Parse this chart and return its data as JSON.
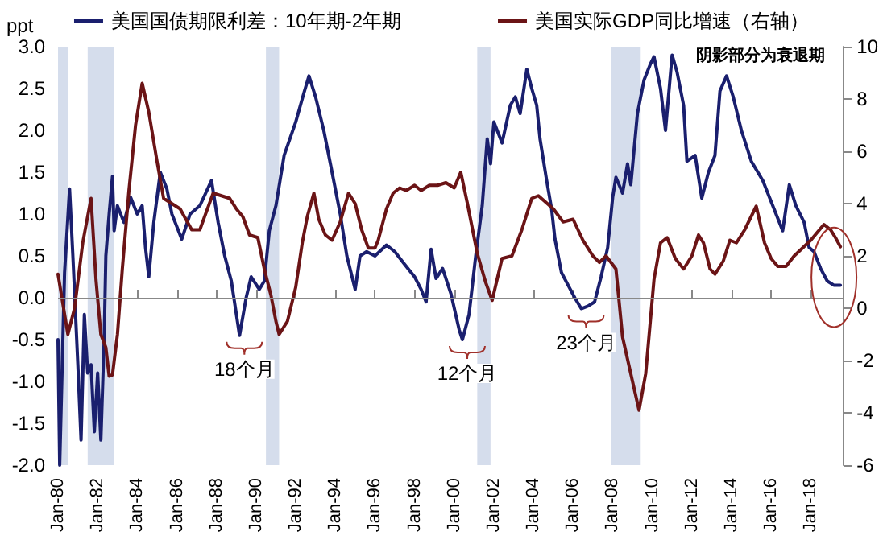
{
  "chart_data": {
    "type": "line",
    "ylabel": "ppt",
    "legend": "top",
    "grid": false,
    "marker": "none",
    "line_style": "solid",
    "xlim": [
      "1980-01",
      "2019-09"
    ],
    "xticks": [
      {
        "value": "1980-01",
        "label": "Jan-80"
      },
      {
        "value": "1982-01",
        "label": "Jan-82"
      },
      {
        "value": "1984-01",
        "label": "Jan-84"
      },
      {
        "value": "1986-01",
        "label": "Jan-86"
      },
      {
        "value": "1988-01",
        "label": "Jan-88"
      },
      {
        "value": "1990-01",
        "label": "Jan-90"
      },
      {
        "value": "1992-01",
        "label": "Jan-92"
      },
      {
        "value": "1994-01",
        "label": "Jan-94"
      },
      {
        "value": "1996-01",
        "label": "Jan-96"
      },
      {
        "value": "1998-01",
        "label": "Jan-98"
      },
      {
        "value": "2000-01",
        "label": "Jan-00"
      },
      {
        "value": "2002-01",
        "label": "Jan-02"
      },
      {
        "value": "2004-01",
        "label": "Jan-04"
      },
      {
        "value": "2006-01",
        "label": "Jan-06"
      },
      {
        "value": "2008-01",
        "label": "Jan-08"
      },
      {
        "value": "2010-01",
        "label": "Jan-10"
      },
      {
        "value": "2012-01",
        "label": "Jan-12"
      },
      {
        "value": "2014-01",
        "label": "Jan-14"
      },
      {
        "value": "2016-01",
        "label": "Jan-16"
      },
      {
        "value": "2018-01",
        "label": "Jan-18"
      }
    ],
    "ylim": [
      -2,
      3
    ],
    "yticks": [
      {
        "value": -2,
        "label": "-2.0"
      },
      {
        "value": -1.5,
        "label": "-1.5"
      },
      {
        "value": -1,
        "label": "-1.0"
      },
      {
        "value": -0.5,
        "label": "-0.5"
      },
      {
        "value": 0,
        "label": "0.0"
      },
      {
        "value": 0.5,
        "label": "0.5"
      },
      {
        "value": 1,
        "label": "1.0"
      },
      {
        "value": 1.5,
        "label": "1.5"
      },
      {
        "value": 2,
        "label": "2.0"
      },
      {
        "value": 2.5,
        "label": "2.5"
      },
      {
        "value": 3,
        "label": "3.0"
      }
    ],
    "y2lim": [
      -6,
      10
    ],
    "y2ticks": [
      -6,
      -4,
      -2,
      0,
      2,
      4,
      6,
      8,
      10
    ],
    "bands": [
      {
        "axis": "x",
        "from": "1980-01",
        "to": "1980-07",
        "color": "#d5ddec"
      },
      {
        "axis": "x",
        "from": "1981-07",
        "to": "1982-11",
        "color": "#d5ddec"
      },
      {
        "axis": "x",
        "from": "1990-07",
        "to": "1991-03",
        "color": "#d5ddec"
      },
      {
        "axis": "x",
        "from": "2001-03",
        "to": "2001-11",
        "color": "#d5ddec"
      },
      {
        "axis": "x",
        "from": "2007-12",
        "to": "2009-06",
        "color": "#d5ddec"
      }
    ],
    "annotations": [
      "阴影部分为衰退期",
      {
        "text": "18个月",
        "x": "1989-03",
        "y": -0.45
      },
      {
        "text": "12个月",
        "x": "2000-06",
        "y": -0.5
      },
      {
        "text": "23个月",
        "x": "2006-06",
        "y": -0.13
      }
    ],
    "ref_lines": [
      {
        "axis": "y",
        "value": 0,
        "color": "#888888"
      }
    ],
    "series": [
      {
        "name": "美国国债期限利差：10年期-2年期",
        "color": "#1a1f6e",
        "x": [
          "1980-01",
          "1980-02",
          "1980-05",
          "1980-08",
          "1980-10",
          "1981-01",
          "1981-03",
          "1981-05",
          "1981-07",
          "1981-09",
          "1981-11",
          "1982-01",
          "1982-03",
          "1982-05",
          "1982-06",
          "1982-08",
          "1982-10",
          "1982-11",
          "1983-01",
          "1983-05",
          "1983-09",
          "1984-01",
          "1984-04",
          "1984-06",
          "1984-08",
          "1984-11",
          "1985-03",
          "1985-07",
          "1985-10",
          "1986-04",
          "1986-09",
          "1987-03",
          "1987-10",
          "1988-02",
          "1988-06",
          "1988-10",
          "1989-03",
          "1989-07",
          "1989-10",
          "1990-03",
          "1990-06",
          "1990-09",
          "1991-01",
          "1991-06",
          "1992-01",
          "1992-06",
          "1992-09",
          "1993-01",
          "1993-06",
          "1993-11",
          "1994-04",
          "1994-08",
          "1995-01",
          "1995-04",
          "1995-08",
          "1996-01",
          "1996-08",
          "1997-01",
          "1997-07",
          "1998-01",
          "1998-05",
          "1998-08",
          "1998-11",
          "1999-02",
          "1999-06",
          "1999-11",
          "2000-04",
          "2000-06",
          "2000-10",
          "2001-02",
          "2001-06",
          "2001-09",
          "2001-11",
          "2002-01",
          "2002-06",
          "2002-11",
          "2003-02",
          "2003-05",
          "2003-09",
          "2003-12",
          "2004-03",
          "2004-05",
          "2004-09",
          "2004-12",
          "2005-02",
          "2005-06",
          "2005-10",
          "2006-02",
          "2006-06",
          "2006-10",
          "2007-02",
          "2007-06",
          "2007-10",
          "2008-01",
          "2008-03",
          "2008-07",
          "2008-10",
          "2008-12",
          "2009-04",
          "2009-08",
          "2009-12",
          "2010-02",
          "2010-06",
          "2010-09",
          "2011-01",
          "2011-04",
          "2011-08",
          "2011-10",
          "2012-03",
          "2012-07",
          "2012-11",
          "2013-03",
          "2013-06",
          "2013-10",
          "2014-02",
          "2014-07",
          "2015-01",
          "2015-05",
          "2015-08",
          "2015-12",
          "2016-04",
          "2016-08",
          "2016-12",
          "2017-04",
          "2017-09",
          "2017-12",
          "2018-03",
          "2018-07",
          "2018-11",
          "2019-03",
          "2019-07"
        ],
        "values": [
          -0.5,
          -2.0,
          0.3,
          1.3,
          0.5,
          -0.8,
          -1.7,
          -0.2,
          -0.9,
          -0.8,
          -1.6,
          -0.9,
          -1.7,
          -0.5,
          0.5,
          1.0,
          1.45,
          0.8,
          1.1,
          0.9,
          1.2,
          1.0,
          1.1,
          0.6,
          0.25,
          0.9,
          1.5,
          1.3,
          1.0,
          0.7,
          1.0,
          1.1,
          1.4,
          0.9,
          0.5,
          0.2,
          -0.45,
          0.0,
          0.25,
          0.1,
          0.2,
          0.8,
          1.1,
          1.7,
          2.1,
          2.45,
          2.65,
          2.4,
          2.0,
          1.5,
          1.0,
          0.5,
          0.1,
          0.5,
          0.55,
          0.5,
          0.63,
          0.55,
          0.4,
          0.25,
          0.1,
          -0.05,
          0.58,
          0.23,
          0.35,
          0.05,
          -0.38,
          -0.5,
          -0.2,
          0.5,
          1.1,
          1.9,
          1.6,
          2.1,
          1.85,
          2.3,
          2.4,
          2.2,
          2.73,
          2.5,
          2.3,
          1.9,
          1.4,
          1.06,
          0.7,
          0.3,
          0.15,
          0.0,
          -0.13,
          -0.1,
          -0.05,
          0.25,
          0.6,
          1.2,
          1.44,
          1.25,
          1.6,
          1.35,
          2.2,
          2.6,
          2.8,
          2.88,
          2.5,
          2.0,
          2.9,
          2.7,
          2.3,
          1.63,
          1.7,
          1.19,
          1.5,
          1.7,
          2.47,
          2.65,
          2.4,
          2.0,
          1.63,
          1.5,
          1.4,
          1.2,
          1.0,
          0.8,
          1.35,
          1.1,
          0.9,
          0.6,
          0.55,
          0.35,
          0.2,
          0.15,
          0.15
        ]
      },
      {
        "name": "美国实际GDP同比增速（右轴）",
        "color": "#6b1416",
        "axis": "y2",
        "x": [
          "1980-01",
          "1980-07",
          "1980-11",
          "1981-04",
          "1981-09",
          "1981-12",
          "1982-03",
          "1982-06",
          "1982-08",
          "1982-10",
          "1983-01",
          "1983-04",
          "1983-08",
          "1983-12",
          "1984-04",
          "1984-08",
          "1985-01",
          "1985-05",
          "1985-10",
          "1986-03",
          "1986-10",
          "1987-03",
          "1987-11",
          "1988-04",
          "1988-09",
          "1989-01",
          "1989-05",
          "1989-09",
          "1990-02",
          "1990-06",
          "1990-10",
          "1991-01",
          "1991-03",
          "1991-08",
          "1992-01",
          "1992-05",
          "1992-08",
          "1992-12",
          "1993-03",
          "1993-07",
          "1993-11",
          "1994-04",
          "1994-09",
          "1995-01",
          "1995-05",
          "1995-09",
          "1996-01",
          "1996-03",
          "1996-08",
          "1996-12",
          "1997-04",
          "1997-08",
          "1998-01",
          "1998-05",
          "1998-10",
          "1999-03",
          "1999-08",
          "2000-01",
          "2000-05",
          "2000-09",
          "2001-03",
          "2001-08",
          "2001-12",
          "2002-06",
          "2002-12",
          "2003-06",
          "2003-12",
          "2004-04",
          "2005-01",
          "2005-07",
          "2006-01",
          "2006-07",
          "2007-01",
          "2007-05",
          "2007-09",
          "2008-03",
          "2008-07",
          "2009-01",
          "2009-05",
          "2009-09",
          "2010-02",
          "2010-06",
          "2010-10",
          "2011-03",
          "2011-08",
          "2012-01",
          "2012-05",
          "2012-08",
          "2012-12",
          "2013-03",
          "2013-08",
          "2013-12",
          "2014-04",
          "2014-09",
          "2015-04",
          "2015-09",
          "2016-01",
          "2016-05",
          "2016-10",
          "2017-03",
          "2017-08",
          "2018-01",
          "2018-05",
          "2018-09",
          "2019-01",
          "2019-04",
          "2019-07"
        ],
        "values": [
          1.3,
          -1.0,
          0.0,
          2.5,
          4.2,
          1.1,
          -1.0,
          -1.5,
          -2.6,
          -2.55,
          -1.0,
          1.5,
          4.5,
          7.0,
          8.6,
          7.5,
          5.6,
          4.2,
          4.0,
          3.8,
          3.0,
          3.0,
          4.4,
          4.3,
          4.2,
          3.8,
          3.5,
          2.8,
          2.7,
          1.5,
          0.5,
          -0.5,
          -1.0,
          -0.5,
          0.8,
          2.5,
          3.5,
          4.4,
          3.4,
          2.8,
          2.6,
          3.3,
          4.4,
          4.0,
          3.0,
          2.3,
          2.3,
          2.6,
          3.8,
          4.4,
          4.6,
          4.5,
          4.7,
          4.5,
          4.7,
          4.7,
          4.8,
          4.6,
          5.2,
          4.0,
          2.1,
          1.0,
          0.3,
          1.9,
          2.0,
          3.0,
          4.2,
          4.3,
          3.8,
          3.3,
          3.4,
          2.6,
          2.0,
          1.75,
          2.0,
          1.5,
          -1.1,
          -2.8,
          -3.9,
          -2.5,
          1.1,
          2.5,
          2.7,
          1.9,
          1.5,
          2.0,
          2.8,
          2.5,
          1.5,
          1.3,
          1.8,
          2.6,
          2.5,
          3.0,
          3.9,
          2.5,
          1.9,
          1.6,
          1.6,
          2.0,
          2.3,
          2.6,
          2.9,
          3.2,
          3.0,
          2.7,
          2.35
        ]
      }
    ]
  }
}
